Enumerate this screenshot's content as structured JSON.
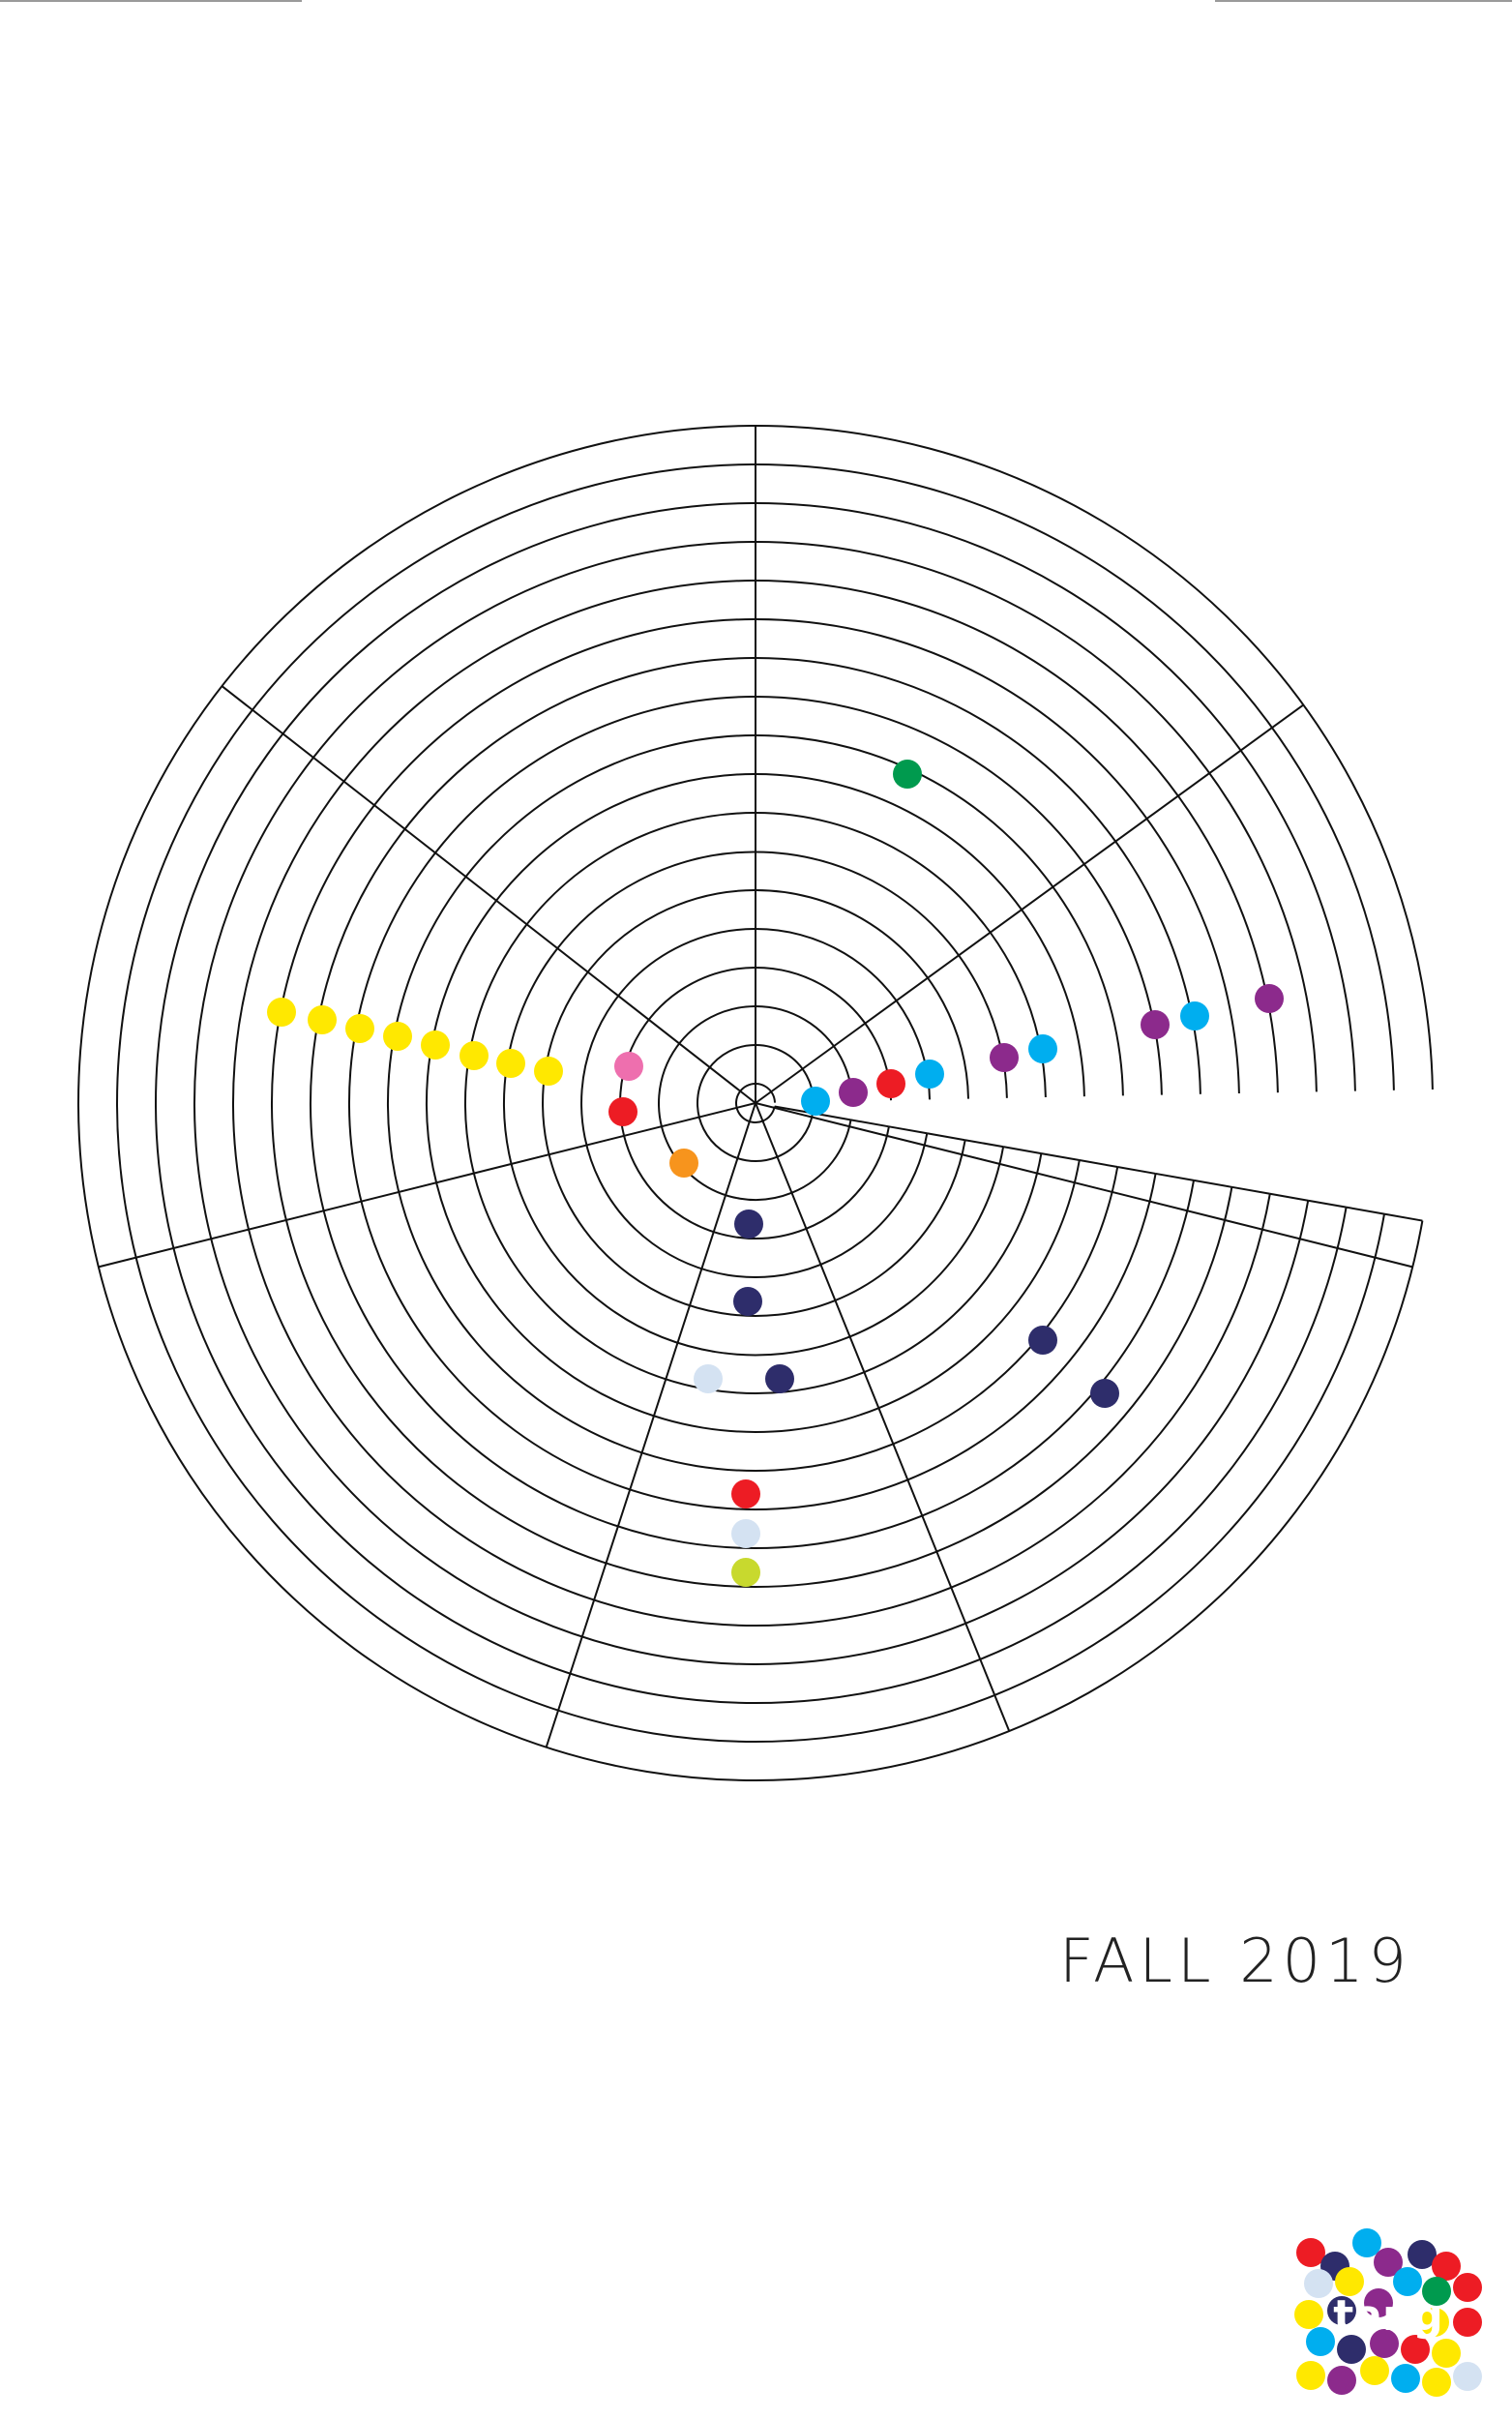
{
  "season_label": "FALL 2019",
  "logo": {
    "text": "tang"
  },
  "palette": {
    "yellow": "#ffe800",
    "green": "#009a4e",
    "purple": "#8c2a8c",
    "cyan": "#00aeef",
    "red": "#ed1c24",
    "pink": "#ee6fae",
    "orange": "#f7941d",
    "navy": "#2e2d6b",
    "pale": "#d4e2f2",
    "lime": "#c8d92e",
    "line": "#111111"
  },
  "spiral": {
    "rings": 18,
    "dots": 32
  }
}
